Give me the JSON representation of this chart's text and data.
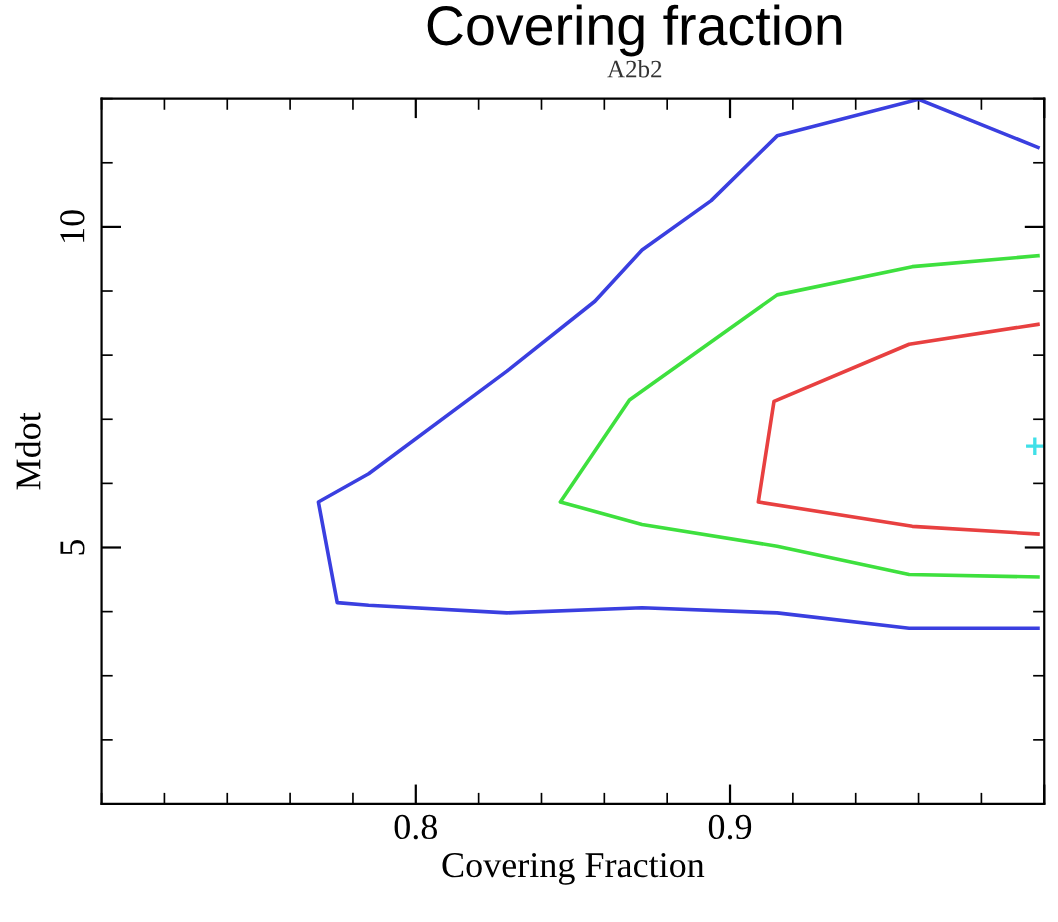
{
  "chart_data": {
    "type": "line",
    "title": "Covering fraction",
    "subtitle": "A2b2",
    "xlabel": "Covering Fraction",
    "ylabel": "Mdot",
    "xlim": [
      0.7,
      1.0
    ],
    "xticks": [
      0.8,
      0.9,
      {
        "value": 1.0,
        "label": null
      }
    ],
    "ylim": [
      1,
      12
    ],
    "yticks": [
      5,
      10
    ],
    "grid": false,
    "legend": false,
    "marker": "none",
    "line_style": "solid",
    "series": [
      {
        "color": "#3a3fe0",
        "x": [
          0.998,
          0.96,
          0.915,
          0.894,
          0.872,
          0.857,
          0.829,
          0.785,
          0.769,
          0.775,
          0.785,
          0.829,
          0.872,
          0.915,
          0.957,
          0.998
        ],
        "values": [
          11.24,
          11.99,
          11.42,
          10.41,
          9.64,
          8.84,
          7.75,
          6.15,
          5.71,
          4.14,
          4.1,
          3.98,
          4.06,
          3.98,
          3.74,
          3.74
        ]
      },
      {
        "color": "#3ee03e",
        "x": [
          0.998,
          0.958,
          0.915,
          0.868,
          0.846,
          0.872,
          0.915,
          0.957,
          0.998
        ],
        "values": [
          9.55,
          9.38,
          8.94,
          7.3,
          5.71,
          5.36,
          5.02,
          4.58,
          4.54
        ]
      },
      {
        "color": "#e84040",
        "x": [
          0.998,
          0.957,
          0.914,
          0.909,
          0.958,
          0.998
        ],
        "values": [
          8.48,
          8.17,
          7.28,
          5.71,
          5.33,
          5.21
        ]
      },
      {
        "type": "scatter",
        "marker": "cross",
        "color": "#40e0e8",
        "x": [
          0.997
        ],
        "values": [
          6.58
        ]
      }
    ]
  }
}
